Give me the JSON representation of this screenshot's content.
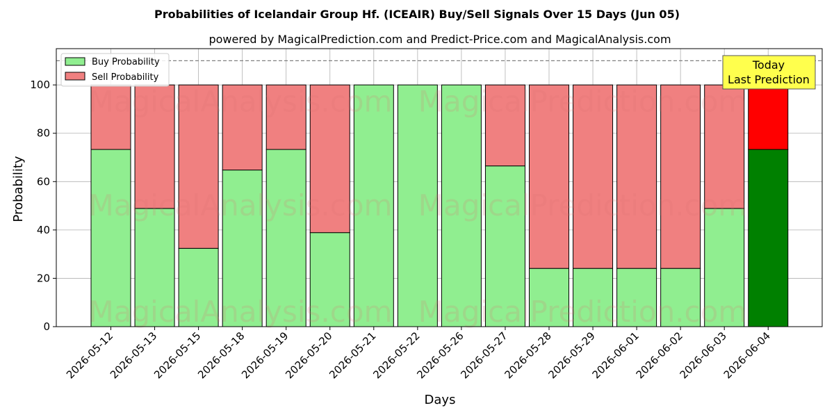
{
  "chart_data": {
    "type": "bar",
    "stacked": true,
    "title": "Probabilities of Icelandair Group Hf. (ICEAIR) Buy/Sell Signals Over 15 Days (Jun 05)",
    "subtitle": "powered by MagicalPrediction.com and Predict-Price.com and MagicalAnalysis.com",
    "xlabel": "Days",
    "ylabel": "Probability",
    "ylim": [
      0,
      115
    ],
    "yticks": [
      0,
      20,
      40,
      60,
      80,
      100
    ],
    "threshold_line": 110,
    "grid": true,
    "legend_position": "top-left",
    "categories": [
      "2026-05-12",
      "2026-05-13",
      "2026-05-15",
      "2026-05-18",
      "2026-05-19",
      "2026-05-20",
      "2026-05-21",
      "2026-05-22",
      "2026-05-26",
      "2026-05-27",
      "2026-05-28",
      "2026-05-29",
      "2026-06-01",
      "2026-06-02",
      "2026-06-03",
      "2026-06-04"
    ],
    "series": [
      {
        "name": "Buy Probability",
        "color": "#90ee90",
        "highlight_color": "#008000",
        "values": [
          73.3,
          48.9,
          32.4,
          64.8,
          73.3,
          38.9,
          100,
          100,
          100,
          66.5,
          24.1,
          24.1,
          24.1,
          24.1,
          48.9,
          73.3
        ]
      },
      {
        "name": "Sell Probability",
        "color": "#f08080",
        "highlight_color": "#ff0000",
        "values": [
          26.7,
          51.1,
          67.6,
          35.2,
          26.7,
          61.1,
          0,
          0,
          0,
          33.5,
          75.9,
          75.9,
          75.9,
          75.9,
          51.1,
          26.7
        ]
      }
    ],
    "annotation": {
      "line1": "Today",
      "line2": "Last Prediction",
      "color": "#ffff4d"
    },
    "watermarks": [
      "MagicalAnalysis.com",
      "MagicalPrediction.com"
    ]
  }
}
